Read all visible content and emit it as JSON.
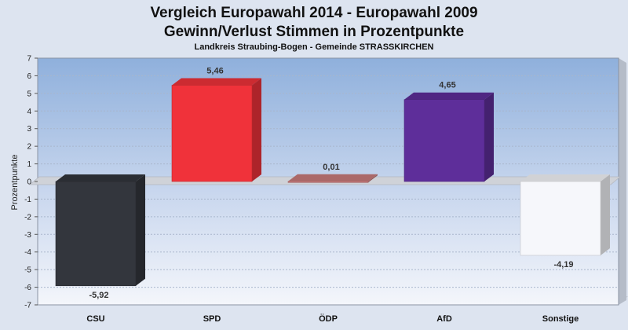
{
  "chart_data": {
    "type": "bar",
    "title": "Vergleich Europawahl 2014 - Europawahl 2009",
    "title_line2": "Gewinn/Verlust Stimmen in Prozentpunkte",
    "subtitle": "Landkreis Straubing-Bogen - Gemeinde STRASSKIRCHEN",
    "ylabel": "Prozentpunkte",
    "xlabel": "",
    "ylim": [
      -7,
      7
    ],
    "yticks": [
      "-7",
      "-6",
      "-5",
      "-4",
      "-3",
      "-2",
      "-1",
      "0",
      "1",
      "2",
      "3",
      "4",
      "5",
      "6",
      "7"
    ],
    "grid": true,
    "categories": [
      "CSU",
      "SPD",
      "ÖDP",
      "AfD",
      "Sonstige"
    ],
    "values": [
      -5.92,
      5.46,
      0.01,
      4.65,
      -4.19
    ],
    "value_labels": [
      "-5,92",
      "5,46",
      "0,01",
      "4,65",
      "-4,19"
    ],
    "colors": [
      "#33363d",
      "#f0323a",
      "#c97b7b",
      "#5e2e9a",
      "#f6f7fb"
    ]
  }
}
